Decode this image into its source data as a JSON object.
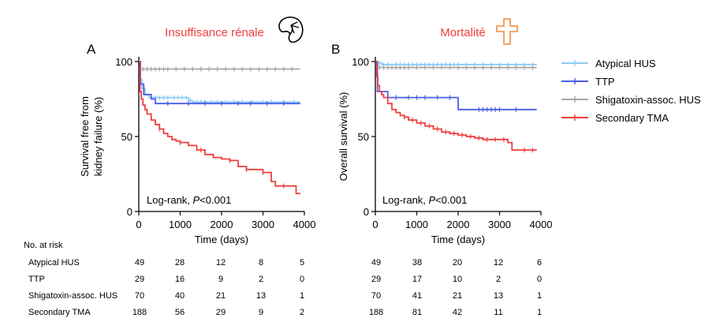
{
  "colors": {
    "atypical_hus": "#8ecbf3",
    "ttp": "#4a5ee6",
    "stec_hus": "#a6a6a6",
    "secondary_tma": "#ee3e3e",
    "heading": "#ee3e3e",
    "icon_cross": "#f08a3c"
  },
  "icons": {
    "panel_a": "kidney-icon",
    "panel_b": "cross-icon"
  },
  "risk_table": {
    "title": "No. at risk",
    "rows": [
      {
        "label": "Atypical HUS",
        "a": [
          49,
          28,
          12,
          8,
          5
        ],
        "b": [
          49,
          38,
          20,
          12,
          6
        ]
      },
      {
        "label": "TTP",
        "a": [
          29,
          16,
          9,
          2,
          0
        ],
        "b": [
          29,
          17,
          10,
          2,
          0
        ]
      },
      {
        "label": "Shigatoxin-assoc. HUS",
        "a": [
          70,
          40,
          21,
          13,
          1
        ],
        "b": [
          70,
          41,
          21,
          13,
          1
        ]
      },
      {
        "label": "Secondary TMA",
        "a": [
          188,
          56,
          29,
          9,
          2
        ],
        "b": [
          188,
          81,
          42,
          11,
          1
        ]
      }
    ]
  },
  "chart_data": [
    {
      "type": "line",
      "panel_letter": "A",
      "title": "Insuffisance rénale",
      "xlabel": "Time (days)",
      "ylabel": [
        "Survival free from",
        "kidney failure (%)"
      ],
      "xlim": [
        0,
        4000
      ],
      "ylim": [
        0,
        100
      ],
      "xticks": [
        0,
        1000,
        2000,
        3000,
        4000
      ],
      "yticks": [
        0,
        50,
        100
      ],
      "annotation": {
        "prefix": "Log-rank, ",
        "p": "P",
        "rest": "<0.001"
      },
      "series": [
        {
          "name": "Atypical HUS",
          "key": "atypical_hus",
          "x": [
            0,
            30,
            80,
            150,
            250,
            800,
            1000,
            1200,
            1300,
            3900
          ],
          "y": [
            100,
            88,
            82,
            78,
            76,
            76,
            76,
            74,
            73,
            73
          ],
          "censor_x": [
            400,
            500,
            600,
            700,
            850,
            950,
            1050,
            1150,
            1250,
            1400,
            1500,
            1600,
            1750,
            1900,
            2100,
            2300,
            2500,
            2750,
            3000,
            3200,
            3500,
            3750
          ]
        },
        {
          "name": "TTP",
          "key": "ttp",
          "x": [
            0,
            40,
            120,
            300,
            400,
            3900
          ],
          "y": [
            100,
            85,
            78,
            75,
            72,
            72
          ],
          "censor_x": [
            700,
            1200,
            1600,
            2000,
            2400,
            2700,
            3100,
            3500
          ]
        },
        {
          "name": "Shigatoxin-assoc. HUS",
          "key": "stec_hus",
          "x": [
            0,
            30,
            3900
          ],
          "y": [
            100,
            95,
            95
          ],
          "censor_x": [
            100,
            200,
            300,
            400,
            500,
            600,
            700,
            900,
            1100,
            1300,
            1500,
            1700,
            1900,
            2100,
            2300,
            2500,
            2700,
            2900,
            3100,
            3300,
            3500,
            3700
          ]
        },
        {
          "name": "Secondary TMA",
          "key": "secondary_tma",
          "x": [
            0,
            30,
            60,
            100,
            150,
            200,
            300,
            400,
            500,
            600,
            700,
            800,
            900,
            1000,
            1200,
            1400,
            1600,
            1800,
            2000,
            2200,
            2400,
            2600,
            2800,
            3000,
            3200,
            3300,
            3500,
            3800,
            3900
          ],
          "y": [
            100,
            80,
            75,
            71,
            68,
            65,
            61,
            58,
            55,
            52,
            50,
            48,
            47,
            46,
            44,
            41,
            38,
            36,
            35,
            34,
            30,
            28,
            28,
            26,
            20,
            17,
            17,
            12,
            12
          ],
          "censor_x": [
            500,
            1000,
            1500,
            2200,
            2600,
            3000,
            3500
          ]
        }
      ]
    },
    {
      "type": "line",
      "panel_letter": "B",
      "title": "Mortalité",
      "xlabel": "Time (days)",
      "ylabel": [
        "Overall survival (%)"
      ],
      "xlim": [
        0,
        4000
      ],
      "ylim": [
        0,
        100
      ],
      "xticks": [
        0,
        1000,
        2000,
        3000,
        4000
      ],
      "yticks": [
        0,
        50,
        100
      ],
      "annotation": {
        "prefix": "Log-rank, ",
        "p": "P",
        "rest": "<0.001"
      },
      "series": [
        {
          "name": "Atypical HUS",
          "key": "atypical_hus",
          "x": [
            0,
            50,
            150,
            400,
            3900
          ],
          "y": [
            100,
            99,
            98,
            98,
            98
          ],
          "censor_x": [
            100,
            200,
            300,
            500,
            600,
            700,
            800,
            900,
            1000,
            1100,
            1200,
            1300,
            1400,
            1500,
            1600,
            1700,
            1800,
            1900,
            2000,
            2200,
            2400,
            2600,
            2800,
            3000,
            3200,
            3400,
            3600,
            3800
          ]
        },
        {
          "name": "TTP",
          "key": "ttp",
          "x": [
            0,
            50,
            300,
            2000,
            3900
          ],
          "y": [
            100,
            80,
            76,
            68,
            68
          ],
          "censor_x": [
            500,
            800,
            1000,
            1200,
            1500,
            1800,
            2500,
            2600,
            2700,
            2800,
            2900,
            3000,
            3400
          ]
        },
        {
          "name": "Shigatoxin-assoc. HUS",
          "key": "stec_hus",
          "x": [
            0,
            30,
            3900
          ],
          "y": [
            100,
            96,
            96
          ],
          "censor_x": [
            100,
            200,
            300,
            400,
            500,
            600,
            700,
            800,
            1000,
            1200,
            1400,
            1600,
            1800,
            2000,
            2200,
            2400,
            2600,
            2800,
            3000,
            3200,
            3400,
            3600,
            3800
          ]
        },
        {
          "name": "Secondary TMA",
          "key": "secondary_tma",
          "x": [
            0,
            30,
            60,
            100,
            150,
            200,
            300,
            400,
            500,
            600,
            700,
            800,
            1000,
            1200,
            1400,
            1600,
            1800,
            2000,
            2200,
            2400,
            2600,
            3200,
            3300,
            3900
          ],
          "y": [
            100,
            90,
            84,
            80,
            78,
            76,
            72,
            68,
            66,
            64,
            63,
            61,
            59,
            57,
            55,
            53,
            52,
            51,
            50,
            49,
            48,
            46,
            41,
            41
          ],
          "censor_x": [
            700,
            900,
            1100,
            1300,
            1500,
            1700,
            1900,
            2100,
            2300,
            2500,
            2700,
            2900,
            3100,
            3600,
            3800
          ]
        }
      ]
    }
  ]
}
